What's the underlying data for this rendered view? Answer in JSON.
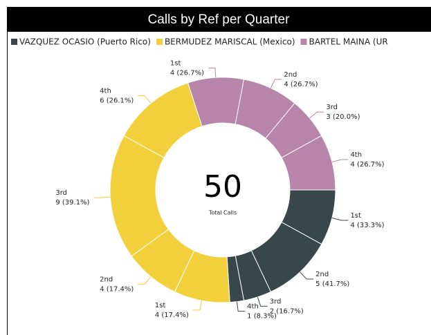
{
  "chart_data": {
    "type": "donut",
    "title": "Calls by Ref per Quarter",
    "categories": [
      "1st",
      "2nd",
      "3rd",
      "4th"
    ],
    "center_value": 50,
    "center_label": "Total Calls",
    "series": [
      {
        "name": "VAZQUEZ OCASIO (Puerto Rico)",
        "color": "#37474a",
        "values": [
          4,
          5,
          2,
          1
        ],
        "value_labels": [
          "4 (33.3%)",
          "5 (41.7%)",
          "2 (16.7%)",
          "1 (8.3%)"
        ]
      },
      {
        "name": "BERMUDEZ MARISCAL (Mexico)",
        "color": "#f2d03b",
        "values": [
          4,
          4,
          9,
          6
        ],
        "value_labels": [
          "4 (17.4%)",
          "4 (17.4%)",
          "9 (39.1%)",
          "6 (26.1%)"
        ]
      },
      {
        "name": "BARTEL MAINA (UR",
        "color": "#b784aa",
        "values": [
          4,
          4,
          3,
          4
        ],
        "value_labels": [
          "4 (26.7%)",
          "4 (26.7%)",
          "3 (20.0%)",
          "4 (26.7%)"
        ]
      }
    ]
  }
}
